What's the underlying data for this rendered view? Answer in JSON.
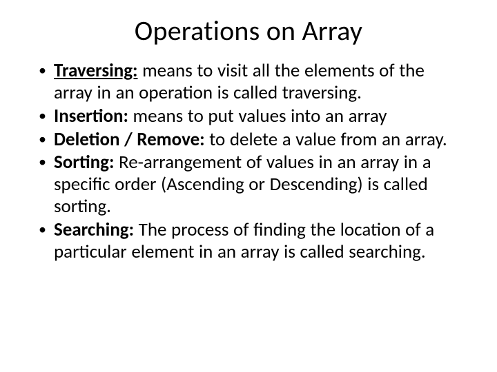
{
  "title": "Operations on Array",
  "items": [
    {
      "term": "Traversing:",
      "underline": true,
      "body": " means to visit all the elements of the array in an operation is called traversing."
    },
    {
      "term": "Insertion:",
      "underline": false,
      "body": " means to put values into an array"
    },
    {
      "term": "Deletion / Remove:",
      "underline": false,
      "body": " to delete a value from an array."
    },
    {
      "term": "Sorting:",
      "underline": false,
      "body": " Re-arrangement of values in an array in a specific order (Ascending or Descending) is called sorting."
    },
    {
      "term": "Searching:",
      "underline": false,
      "body": " The process of finding the location of a particular element in an array is called searching."
    }
  ],
  "colors": {
    "background": "#ffffff",
    "text": "#000000"
  },
  "typography": {
    "title_fontsize": 40,
    "body_fontsize": 27,
    "font_family": "Calibri"
  }
}
